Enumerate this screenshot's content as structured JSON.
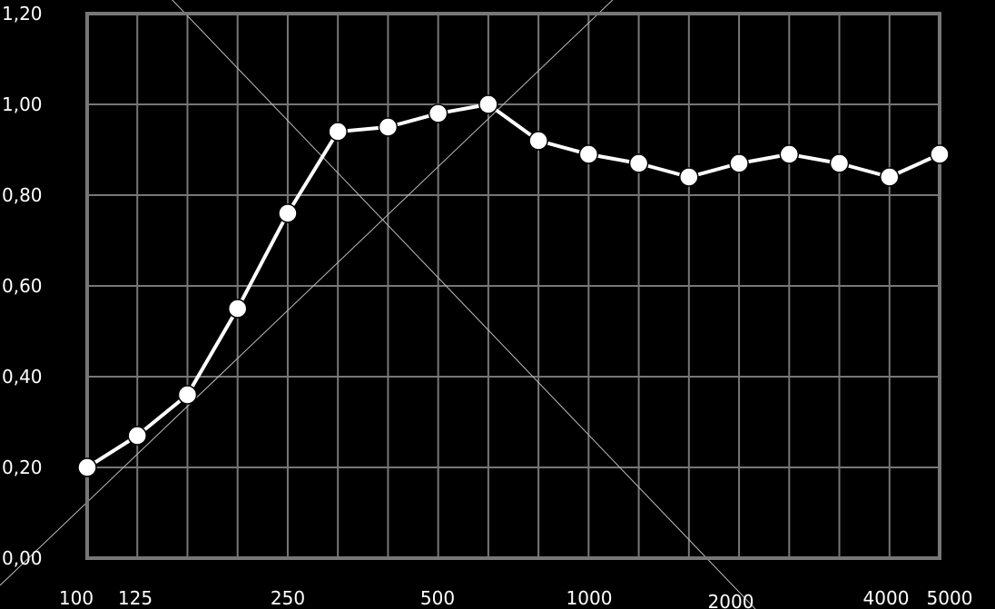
{
  "colors": {
    "background": "#000000",
    "grid": "#777777",
    "line": "#ffffff",
    "marker": "#ffffff"
  },
  "chart_data": {
    "type": "line",
    "title": "",
    "xlabel": "",
    "ylabel": "",
    "x_scale": "log",
    "x_tick_labels": [
      "100",
      "125",
      "250",
      "500",
      "1000",
      "2000",
      "4000",
      "5000"
    ],
    "y_tick_labels": [
      "0,00",
      "0,20",
      "0,40",
      "0,60",
      "0,80",
      "1,00",
      "1,20"
    ],
    "ylim": [
      0,
      1.2
    ],
    "grid": true,
    "legend": "none",
    "series": [
      {
        "x": [
          100,
          125,
          160,
          200,
          250,
          315,
          400,
          500,
          630,
          800,
          1000,
          1250,
          1600,
          2000,
          2500,
          3150,
          4000,
          5000
        ],
        "values": [
          0.2,
          0.27,
          0.36,
          0.55,
          0.76,
          0.94,
          0.95,
          0.98,
          1.0,
          0.92,
          0.89,
          0.87,
          0.84,
          0.87,
          0.89,
          0.87,
          0.84,
          0.89
        ]
      }
    ]
  }
}
